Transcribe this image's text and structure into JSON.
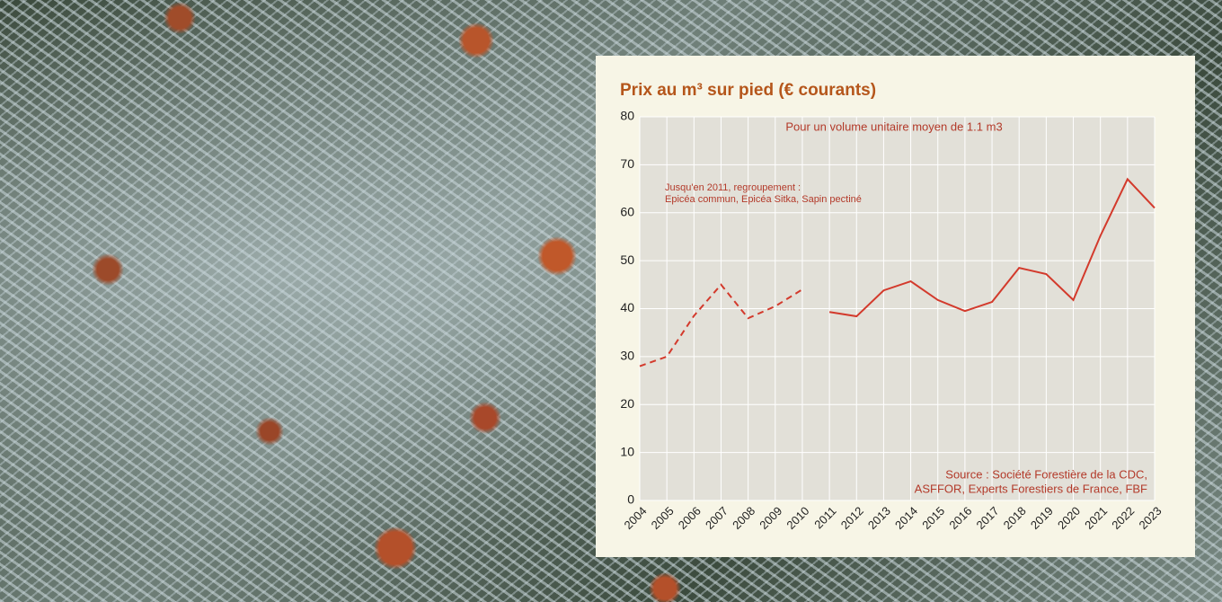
{
  "chart_data": {
    "type": "line",
    "title": "Prix au m³ sur pied (€ courants)",
    "subtitle": "Pour un volume unitaire moyen de 1.1 m3",
    "note": [
      "Jusqu'en 2011, regroupement :",
      "Epicéa commun, Epicéa Sitka, Sapin pectiné"
    ],
    "source": [
      "Source : Société Forestière de la CDC,",
      "ASFFOR, Experts Forestiers de France, FBF"
    ],
    "categories": [
      "2004",
      "2005",
      "2006",
      "2007",
      "2008",
      "2009",
      "2010",
      "2011",
      "2012",
      "2013",
      "2014",
      "2015",
      "2016",
      "2017",
      "2018",
      "2019",
      "2020",
      "2021",
      "2022",
      "2023"
    ],
    "series": [
      {
        "color": "#d33a2c",
        "dashed": true,
        "values": [
          28,
          30,
          38.5,
          45,
          38,
          40.5,
          44,
          null,
          null,
          null,
          null,
          null,
          null,
          null,
          null,
          null,
          null,
          null,
          null,
          null
        ]
      },
      {
        "color": "#d33a2c",
        "dashed": false,
        "values": [
          null,
          null,
          null,
          null,
          null,
          null,
          null,
          39.3,
          38.4,
          43.8,
          45.7,
          41.8,
          39.5,
          41.4,
          48.5,
          47.2,
          41.8,
          55.2,
          67,
          61
        ]
      }
    ],
    "ylim": [
      0,
      80
    ],
    "yticks": [
      0,
      10,
      20,
      30,
      40,
      50,
      60,
      70,
      80
    ],
    "grid": true
  }
}
